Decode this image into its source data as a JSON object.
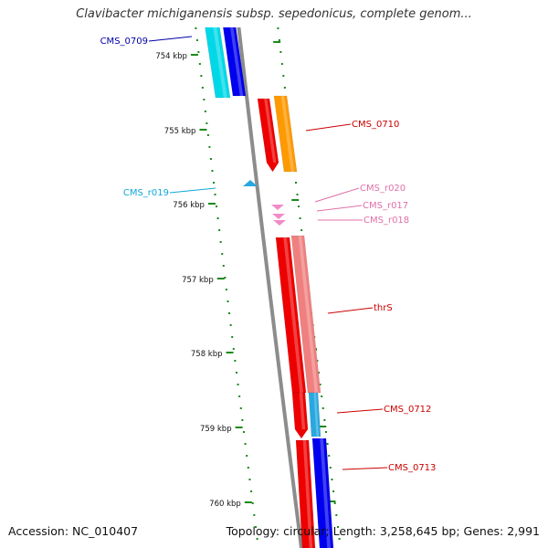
{
  "title": "Clavibacter michiganensis subsp. sepedonicus, complete genom...",
  "accession": "Accession: NC_010407",
  "summary": "Topology: circular; Length: 3,258,645 bp; Genes: 2,991",
  "colors": {
    "backbone": "#8c8c8c",
    "scale_tick": "#1a8a1a",
    "cyan": "#00d8e8",
    "blue": "#0000ee",
    "red": "#ee0000",
    "orange": "#ff9900",
    "salmon": "#f08080",
    "rna_pink": "#f08cc8",
    "rna_blue": "#29a8e0",
    "label_dark_blue": "#0000aa",
    "label_red": "#cc0000",
    "label_pink": "#e070a8",
    "label_cyan": "#10a8d8"
  },
  "scale": {
    "unit": "kbp",
    "major_labels": [
      "754 kbp",
      "755 kbp",
      "756 kbp",
      "757 kbp",
      "758 kbp",
      "759 kbp",
      "760 kbp"
    ]
  },
  "features": [
    {
      "id": "f_cms0709_a",
      "label": "CMS_0709",
      "color_key": "cyan"
    },
    {
      "id": "f_cms0709_b",
      "label": "",
      "color_key": "blue"
    },
    {
      "id": "f_cms0710_a",
      "label": "CMS_0710",
      "color_key": "red"
    },
    {
      "id": "f_cms0710_b",
      "label": "",
      "color_key": "orange"
    },
    {
      "id": "f_r019",
      "label": "CMS_r019",
      "color_key": "rna_blue"
    },
    {
      "id": "f_r020",
      "label": "CMS_r020",
      "color_key": "rna_pink"
    },
    {
      "id": "f_r017",
      "label": "CMS_r017",
      "color_key": "rna_pink"
    },
    {
      "id": "f_r018",
      "label": "CMS_r018",
      "color_key": "rna_pink"
    },
    {
      "id": "f_thrs_a",
      "label": "thrS",
      "color_key": "red"
    },
    {
      "id": "f_thrs_b",
      "label": "",
      "color_key": "salmon"
    },
    {
      "id": "f_cms0712",
      "label": "CMS_0712",
      "color_key": "red"
    },
    {
      "id": "f_cms0713",
      "label": "CMS_0713",
      "color_key": "red"
    }
  ]
}
